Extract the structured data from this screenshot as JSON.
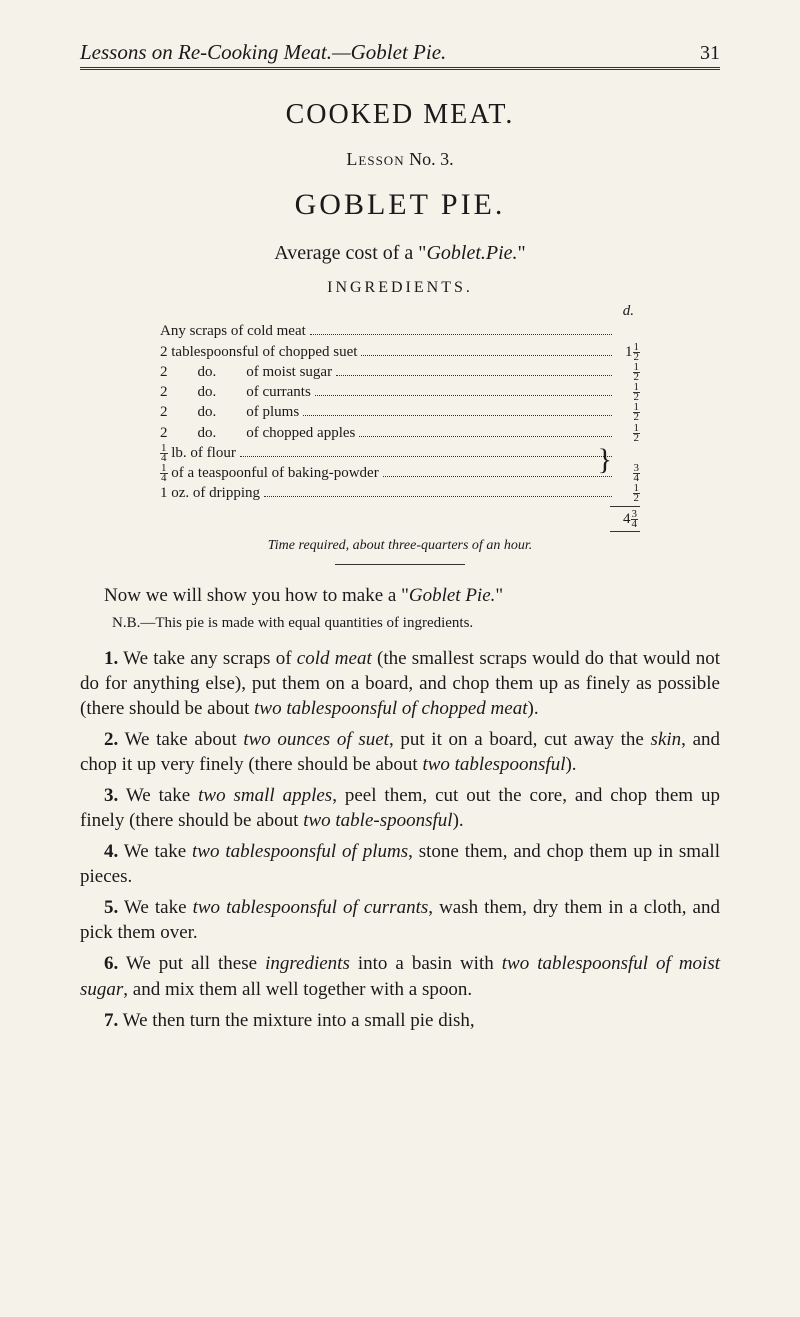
{
  "header": {
    "running_title": "Lessons on Re-Cooking Meat.—Goblet Pie.",
    "page_number": "31"
  },
  "title": "COOKED MEAT.",
  "lesson": {
    "label_prefix": "Lesson",
    "label_num": "No. 3."
  },
  "recipe_name": "GOBLET PIE.",
  "avg_cost": {
    "prefix": "Average cost of a \"",
    "italic": "Goblet.Pie.",
    "suffix": "\""
  },
  "ingredients_head": "INGREDIENTS.",
  "d_label": "d.",
  "ingredients": [
    {
      "label": "Any scraps of cold meat",
      "amount": ""
    },
    {
      "label": "2 tablespoonsful of chopped suet",
      "amount_int": "1",
      "amount_frac_n": "1",
      "amount_frac_d": "2"
    },
    {
      "label": "2  do.  of moist sugar",
      "amount_frac_n": "1",
      "amount_frac_d": "2"
    },
    {
      "label": "2  do.  of currants",
      "amount_frac_n": "1",
      "amount_frac_d": "2"
    },
    {
      "label": "2  do.  of plums",
      "amount_frac_n": "1",
      "amount_frac_d": "2"
    },
    {
      "label": "2  do.  of chopped apples",
      "amount_frac_n": "1",
      "amount_frac_d": "2"
    }
  ],
  "brace_items": {
    "line1_pre": "",
    "line1_frac_n": "1",
    "line1_frac_d": "4",
    "line1_post": " lb. of flour",
    "line2_pre": "",
    "line2_frac_n": "1",
    "line2_frac_d": "4",
    "line2_post": " of a teaspoonful of baking-powder",
    "amount_frac_n": "3",
    "amount_frac_d": "4"
  },
  "last_ing": {
    "label": "1 oz. of dripping",
    "amount_frac_n": "1",
    "amount_frac_d": "2"
  },
  "total": {
    "int": "4",
    "frac_n": "3",
    "frac_d": "4"
  },
  "time_required": {
    "italic": "Time required, about three-quarters of an hour.",
    "plain": ""
  },
  "intro": {
    "text1": "Now we will show you how to make a \"",
    "italic": "Goblet Pie.",
    "text2": "\""
  },
  "nb": "N.B.—This pie is made with equal quantities of ingredients.",
  "steps": [
    {
      "num": "1.",
      "parts": [
        {
          "t": " We take any scraps of "
        },
        {
          "i": "cold meat"
        },
        {
          "t": " (the smallest scraps would do that would not do for anything else), put them on a board, and chop them up as finely as possible (there should be about "
        },
        {
          "i": "two tablespoonsful of chopped meat"
        },
        {
          "t": ")."
        }
      ]
    },
    {
      "num": "2.",
      "parts": [
        {
          "t": " We take about "
        },
        {
          "i": "two ounces of suet"
        },
        {
          "t": ", put it on a board, cut away the "
        },
        {
          "i": "skin"
        },
        {
          "t": ", and chop it up very finely (there should be about "
        },
        {
          "i": "two tablespoonsful"
        },
        {
          "t": ")."
        }
      ]
    },
    {
      "num": "3.",
      "parts": [
        {
          "t": " We take "
        },
        {
          "i": "two small apples"
        },
        {
          "t": ", peel them, cut out the core, and chop them up finely (there should be about "
        },
        {
          "i": "two table-spoonsful"
        },
        {
          "t": ")."
        }
      ]
    },
    {
      "num": "4.",
      "parts": [
        {
          "t": " We take "
        },
        {
          "i": "two tablespoonsful of plums"
        },
        {
          "t": ", stone them, and chop them up in small pieces."
        }
      ]
    },
    {
      "num": "5.",
      "parts": [
        {
          "t": " We take "
        },
        {
          "i": "two tablespoonsful of currants"
        },
        {
          "t": ", wash them, dry them in a cloth, and pick them over."
        }
      ]
    },
    {
      "num": "6.",
      "parts": [
        {
          "t": " We put all these "
        },
        {
          "i": "ingredients"
        },
        {
          "t": " into a basin with "
        },
        {
          "i": "two tablespoonsful of moist sugar"
        },
        {
          "t": ", and mix them all well together with a spoon."
        }
      ]
    },
    {
      "num": "7.",
      "parts": [
        {
          "t": " We then turn the mixture into a small pie dish,"
        }
      ]
    }
  ]
}
